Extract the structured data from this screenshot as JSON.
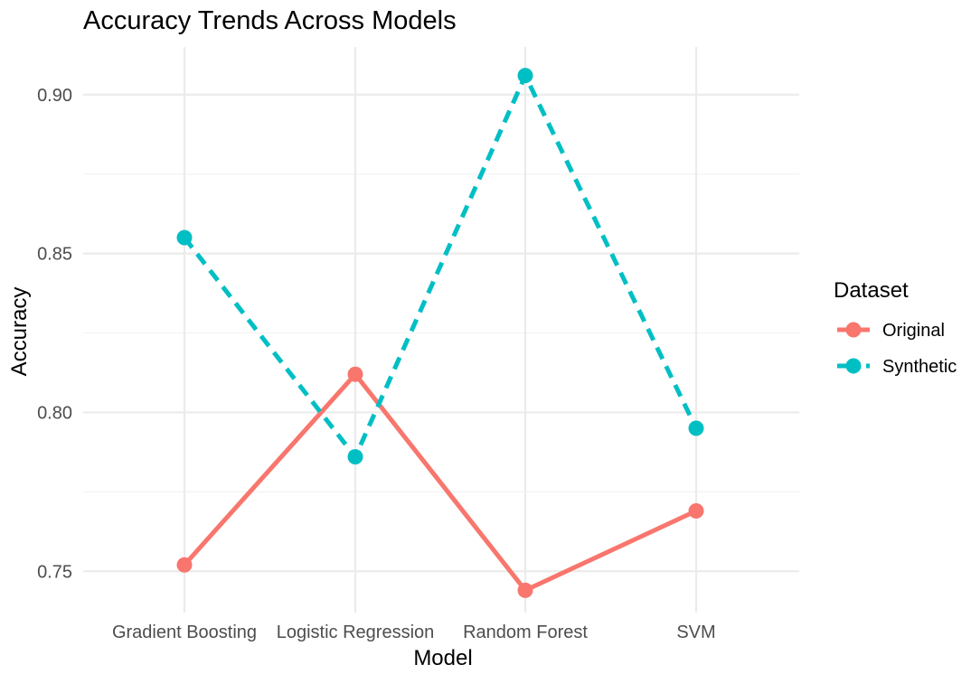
{
  "chart_data": {
    "type": "line",
    "title": "Accuracy Trends Across Models",
    "xlabel": "Model",
    "ylabel": "Accuracy",
    "categories": [
      "Gradient Boosting",
      "Logistic Regression",
      "Random Forest",
      "SVM"
    ],
    "yticks": [
      0.75,
      0.8,
      0.85,
      0.9
    ],
    "ytick_labels": [
      "0.75",
      "0.80",
      "0.85",
      "0.90"
    ],
    "ylim": [
      0.737,
      0.915
    ],
    "grid": true,
    "legend": {
      "title": "Dataset",
      "placement": "right"
    },
    "series": [
      {
        "name": "Original",
        "color": "#F8766D",
        "line_style": "solid",
        "values": [
          0.752,
          0.812,
          0.744,
          0.769
        ]
      },
      {
        "name": "Synthetic",
        "color": "#00BFC4",
        "line_style": "dashed",
        "values": [
          0.855,
          0.786,
          0.906,
          0.795
        ]
      }
    ]
  }
}
